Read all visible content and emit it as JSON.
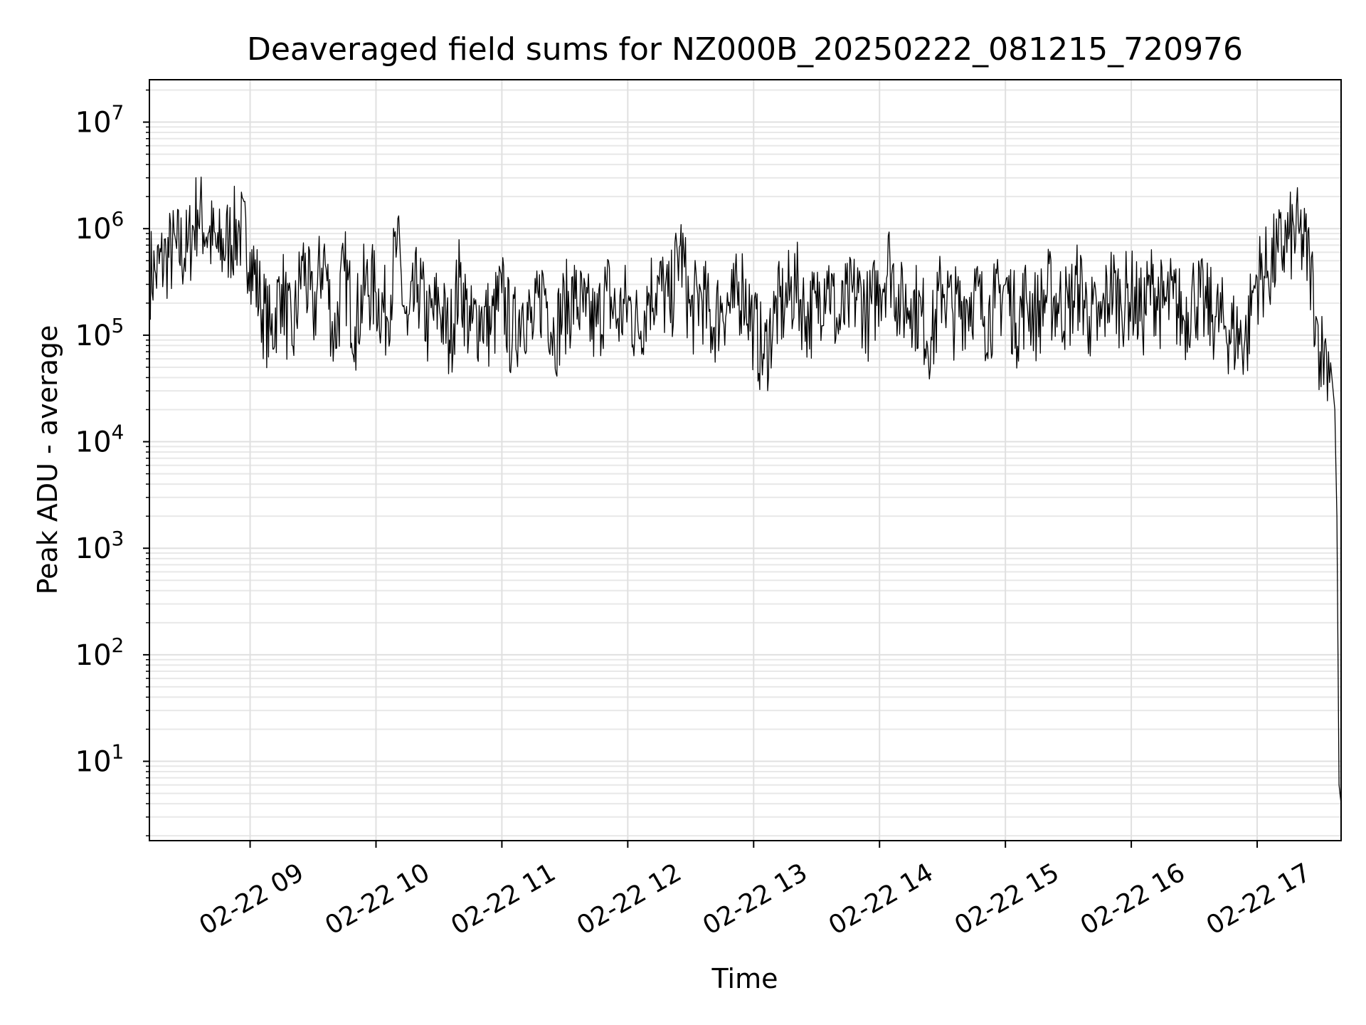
{
  "chart_data": {
    "type": "line",
    "title": "Deaveraged field sums for NZ000B_20250222_081215_720976",
    "xlabel": "Time",
    "ylabel": "Peak ADU - average",
    "yscale": "log",
    "ylim": [
      1.8,
      25000000
    ],
    "xlim": [
      "2025-02-22 08:12",
      "2025-02-22 17:40"
    ],
    "grid": true,
    "legend": "none",
    "line_color": "#000000",
    "x_ticks": [
      {
        "label": "02-22 09",
        "value": "2025-02-22 09:00"
      },
      {
        "label": "02-22 10",
        "value": "2025-02-22 10:00"
      },
      {
        "label": "02-22 11",
        "value": "2025-02-22 11:00"
      },
      {
        "label": "02-22 12",
        "value": "2025-02-22 12:00"
      },
      {
        "label": "02-22 13",
        "value": "2025-02-22 13:00"
      },
      {
        "label": "02-22 14",
        "value": "2025-02-22 14:00"
      },
      {
        "label": "02-22 15",
        "value": "2025-02-22 15:00"
      },
      {
        "label": "02-22 16",
        "value": "2025-02-22 16:00"
      },
      {
        "label": "02-22 17",
        "value": "2025-02-22 17:00"
      }
    ],
    "y_ticks": [
      {
        "base": "10",
        "exp": "1",
        "value": 10
      },
      {
        "base": "10",
        "exp": "2",
        "value": 100
      },
      {
        "base": "10",
        "exp": "3",
        "value": 1000
      },
      {
        "base": "10",
        "exp": "4",
        "value": 10000
      },
      {
        "base": "10",
        "exp": "5",
        "value": 100000
      },
      {
        "base": "10",
        "exp": "6",
        "value": 1000000
      },
      {
        "base": "10",
        "exp": "7",
        "value": 10000000
      }
    ],
    "series": [
      {
        "x": [
          "2025-02-22 08:12",
          "2025-02-22 08:15",
          "2025-02-22 08:20",
          "2025-02-22 08:25",
          "2025-02-22 08:30",
          "2025-02-22 08:35",
          "2025-02-22 08:40",
          "2025-02-22 08:45",
          "2025-02-22 08:50",
          "2025-02-22 08:55",
          "2025-02-22 09:00",
          "2025-02-22 09:05",
          "2025-02-22 09:10",
          "2025-02-22 09:15",
          "2025-02-22 09:20",
          "2025-02-22 09:25",
          "2025-02-22 09:30",
          "2025-02-22 09:35",
          "2025-02-22 09:40",
          "2025-02-22 09:45",
          "2025-02-22 09:50",
          "2025-02-22 09:55",
          "2025-02-22 10:00",
          "2025-02-22 10:05",
          "2025-02-22 10:10",
          "2025-02-22 10:15",
          "2025-02-22 10:20",
          "2025-02-22 10:25",
          "2025-02-22 10:30",
          "2025-02-22 10:35",
          "2025-02-22 10:40",
          "2025-02-22 10:45",
          "2025-02-22 10:50",
          "2025-02-22 10:55",
          "2025-02-22 11:00",
          "2025-02-22 11:05",
          "2025-02-22 11:10",
          "2025-02-22 11:15",
          "2025-02-22 11:20",
          "2025-02-22 11:25",
          "2025-02-22 11:30",
          "2025-02-22 11:35",
          "2025-02-22 11:40",
          "2025-02-22 11:45",
          "2025-02-22 11:50",
          "2025-02-22 11:55",
          "2025-02-22 12:00",
          "2025-02-22 12:05",
          "2025-02-22 12:10",
          "2025-02-22 12:15",
          "2025-02-22 12:20",
          "2025-02-22 12:25",
          "2025-02-22 12:30",
          "2025-02-22 12:35",
          "2025-02-22 12:40",
          "2025-02-22 12:45",
          "2025-02-22 12:50",
          "2025-02-22 12:55",
          "2025-02-22 13:00",
          "2025-02-22 13:05",
          "2025-02-22 13:10",
          "2025-02-22 13:15",
          "2025-02-22 13:20",
          "2025-02-22 13:25",
          "2025-02-22 13:30",
          "2025-02-22 13:35",
          "2025-02-22 13:40",
          "2025-02-22 13:45",
          "2025-02-22 13:50",
          "2025-02-22 13:55",
          "2025-02-22 14:00",
          "2025-02-22 14:05",
          "2025-02-22 14:10",
          "2025-02-22 14:15",
          "2025-02-22 14:20",
          "2025-02-22 14:25",
          "2025-02-22 14:30",
          "2025-02-22 14:35",
          "2025-02-22 14:40",
          "2025-02-22 14:45",
          "2025-02-22 14:50",
          "2025-02-22 14:55",
          "2025-02-22 15:00",
          "2025-02-22 15:05",
          "2025-02-22 15:10",
          "2025-02-22 15:15",
          "2025-02-22 15:20",
          "2025-02-22 15:25",
          "2025-02-22 15:30",
          "2025-02-22 15:35",
          "2025-02-22 15:40",
          "2025-02-22 15:45",
          "2025-02-22 15:50",
          "2025-02-22 15:55",
          "2025-02-22 16:00",
          "2025-02-22 16:05",
          "2025-02-22 16:10",
          "2025-02-22 16:15",
          "2025-02-22 16:20",
          "2025-02-22 16:25",
          "2025-02-22 16:30",
          "2025-02-22 16:35",
          "2025-02-22 16:40",
          "2025-02-22 16:45",
          "2025-02-22 16:50",
          "2025-02-22 16:55",
          "2025-02-22 16:58",
          "2025-02-22 17:00",
          "2025-02-22 17:05",
          "2025-02-22 17:10",
          "2025-02-22 17:15",
          "2025-02-22 17:20",
          "2025-02-22 17:25",
          "2025-02-22 17:28",
          "2025-02-22 17:30",
          "2025-02-22 17:33",
          "2025-02-22 17:35",
          "2025-02-22 17:37",
          "2025-02-22 17:38",
          "2025-02-22 17:39",
          "2025-02-22 17:40"
        ],
        "y": [
          400000,
          380000,
          550000,
          650000,
          600000,
          1500000,
          900000,
          600000,
          800000,
          1000000,
          600000,
          200000,
          100000,
          300000,
          80000,
          500000,
          150000,
          600000,
          90000,
          400000,
          120000,
          300000,
          250000,
          150000,
          700000,
          100000,
          300000,
          120000,
          200000,
          90000,
          350000,
          110000,
          160000,
          120000,
          250000,
          90000,
          200000,
          110000,
          300000,
          100000,
          180000,
          220000,
          150000,
          120000,
          260000,
          140000,
          200000,
          110000,
          250000,
          300000,
          180000,
          700000,
          150000,
          250000,
          120000,
          200000,
          180000,
          300000,
          120000,
          60000,
          160000,
          200000,
          300000,
          150000,
          180000,
          400000,
          120000,
          200000,
          250000,
          150000,
          300000,
          500000,
          180000,
          220000,
          150000,
          90000,
          300000,
          160000,
          200000,
          250000,
          150000,
          180000,
          300000,
          130000,
          220000,
          150000,
          250000,
          200000,
          180000,
          300000,
          150000,
          120000,
          300000,
          200000,
          250000,
          150000,
          300000,
          180000,
          220000,
          140000,
          250000,
          180000,
          150000,
          120000,
          100000,
          90000,
          250000,
          350000,
          400000,
          600000,
          800000,
          900000,
          500000,
          150000,
          70000,
          70000,
          55000,
          20000,
          2000,
          6,
          4
        ]
      }
    ]
  }
}
